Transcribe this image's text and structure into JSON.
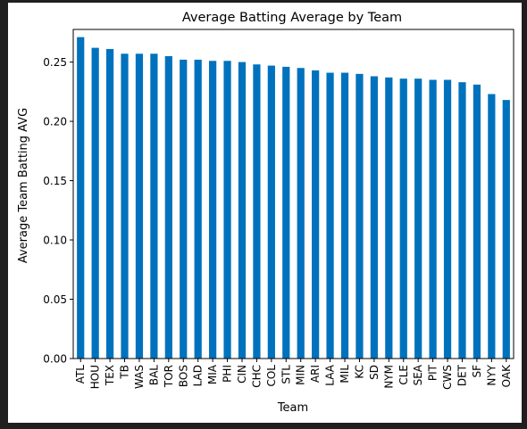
{
  "chart_data": {
    "type": "bar",
    "title": "Average Batting Average by Team",
    "xlabel": "Team",
    "ylabel": "Average Team Batting AVG",
    "ylim": [
      0,
      0.2775
    ],
    "yticks": [
      "0.00",
      "0.05",
      "0.10",
      "0.15",
      "0.20",
      "0.25"
    ],
    "bar_color": "#0072bd",
    "grid": false,
    "legend": "none",
    "categories": [
      "ATL",
      "HOU",
      "TEX",
      "TB",
      "WAS",
      "BAL",
      "TOR",
      "BOS",
      "LAD",
      "MIA",
      "PHI",
      "CIN",
      "CHC",
      "COL",
      "STL",
      "MIN",
      "ARI",
      "LAA",
      "MIL",
      "KC",
      "SD",
      "NYM",
      "CLE",
      "SEA",
      "PIT",
      "CWS",
      "DET",
      "SF",
      "NYY",
      "OAK"
    ],
    "values": [
      0.271,
      0.262,
      0.261,
      0.257,
      0.257,
      0.257,
      0.255,
      0.252,
      0.252,
      0.251,
      0.251,
      0.25,
      0.248,
      0.247,
      0.246,
      0.245,
      0.243,
      0.241,
      0.241,
      0.24,
      0.238,
      0.237,
      0.236,
      0.236,
      0.235,
      0.235,
      0.233,
      0.231,
      0.223,
      0.218
    ]
  }
}
